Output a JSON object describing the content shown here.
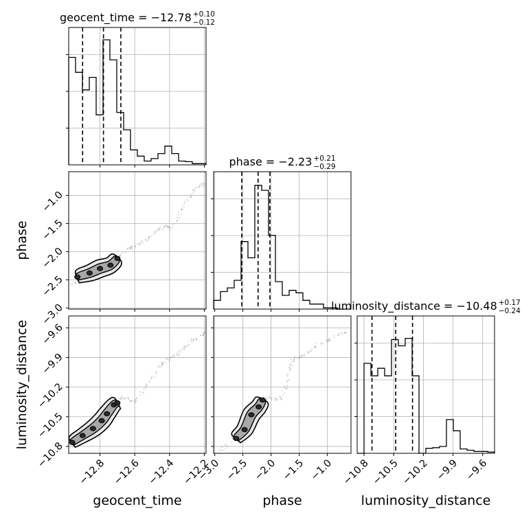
{
  "chart_data": {
    "type": "corner",
    "parameters": [
      "geocent_time",
      "phase",
      "luminosity_distance"
    ],
    "axis_labels": {
      "geocent_time": "geocent_time",
      "phase": "phase",
      "luminosity_distance": "luminosity_distance"
    },
    "ranges": {
      "geocent_time": [
        -12.98,
        -12.19
      ],
      "phase": [
        -3.02,
        -0.58
      ],
      "luminosity_distance": [
        -10.87,
        -9.48
      ]
    },
    "ticks": {
      "geocent_time": [
        {
          "value": -12.8,
          "label": "−12.8"
        },
        {
          "value": -12.6,
          "label": "−12.6"
        },
        {
          "value": -12.4,
          "label": "−12.4"
        },
        {
          "value": -12.2,
          "label": "−12.2"
        }
      ],
      "phase": [
        {
          "value": -3.0,
          "label": "−3.0"
        },
        {
          "value": -2.5,
          "label": "−2.5"
        },
        {
          "value": -2.0,
          "label": "−2.0"
        },
        {
          "value": -1.5,
          "label": "−1.5"
        },
        {
          "value": -1.0,
          "label": "−1.0"
        }
      ],
      "luminosity_distance": [
        {
          "value": -10.8,
          "label": "−10.8"
        },
        {
          "value": -10.5,
          "label": "−10.5"
        },
        {
          "value": -10.2,
          "label": "−10.2"
        },
        {
          "value": -9.9,
          "label": "−9.9"
        },
        {
          "value": -9.6,
          "label": "−9.6"
        }
      ]
    },
    "titles": [
      {
        "param": "geocent_time",
        "text": "geocent_time = −12.78",
        "plus": "+0.10",
        "minus": "−0.12"
      },
      {
        "param": "phase",
        "text": "phase = −2.23",
        "plus": "+0.21",
        "minus": "−0.29"
      },
      {
        "param": "luminosity_distance",
        "text": "luminosity_distance = −10.48",
        "plus": "+0.17",
        "minus": "−0.24"
      }
    ],
    "quantiles": {
      "geocent_time": [
        -12.9,
        -12.78,
        -12.68
      ],
      "phase": [
        -2.52,
        -2.23,
        -2.02
      ],
      "luminosity_distance": [
        -10.72,
        -10.48,
        -10.31
      ]
    },
    "histograms": {
      "geocent_time": [
        0.86,
        0.74,
        0.6,
        0.7,
        0.4,
        1.0,
        0.84,
        0.42,
        0.28,
        0.12,
        0.07,
        0.03,
        0.05,
        0.09,
        0.15,
        0.09,
        0.03,
        0.025,
        0.01,
        0.01
      ],
      "phase": [
        0.07,
        0.14,
        0.17,
        0.23,
        0.54,
        0.41,
        0.99,
        0.95,
        0.59,
        0.22,
        0.11,
        0.15,
        0.13,
        0.07,
        0.04,
        0.04,
        0.01,
        0.01,
        0.0,
        0.0
      ],
      "luminosity_distance": [
        0.0,
        0.72,
        0.62,
        0.68,
        0.62,
        0.91,
        0.86,
        0.92,
        0.62,
        0.0,
        0.04,
        0.045,
        0.055,
        0.27,
        0.18,
        0.035,
        0.025,
        0.015,
        0.015,
        0.01
      ]
    },
    "scatter": {
      "time_phase": [
        [
          -12.97,
          -2.6
        ],
        [
          -12.93,
          -2.55
        ],
        [
          -12.89,
          -2.46
        ],
        [
          -12.85,
          -2.38
        ],
        [
          -12.81,
          -2.3
        ],
        [
          -12.77,
          -2.24
        ],
        [
          -12.73,
          -2.17
        ],
        [
          -12.69,
          -2.08
        ],
        [
          -12.65,
          -2.0
        ],
        [
          -12.62,
          -1.94
        ],
        [
          -12.59,
          -1.88
        ],
        [
          -12.56,
          -1.85
        ],
        [
          -12.53,
          -1.78
        ],
        [
          -12.5,
          -1.68
        ],
        [
          -12.47,
          -1.6
        ],
        [
          -12.44,
          -1.57
        ],
        [
          -12.41,
          -1.55
        ],
        [
          -12.39,
          -1.59
        ],
        [
          -12.36,
          -1.44
        ],
        [
          -12.33,
          -1.26
        ],
        [
          -12.3,
          -1.1
        ],
        [
          -12.27,
          -0.97
        ],
        [
          -12.25,
          -0.89
        ],
        [
          -12.22,
          -0.82
        ],
        [
          -12.2,
          -0.8
        ]
      ],
      "time_distance": [
        [
          -12.97,
          -10.78
        ],
        [
          -12.93,
          -10.72
        ],
        [
          -12.89,
          -10.66
        ],
        [
          -12.85,
          -10.58
        ],
        [
          -12.81,
          -10.5
        ],
        [
          -12.77,
          -10.43
        ],
        [
          -12.73,
          -10.36
        ],
        [
          -12.69,
          -10.31
        ],
        [
          -12.66,
          -10.31
        ],
        [
          -12.63,
          -10.33
        ],
        [
          -12.6,
          -10.34
        ],
        [
          -12.57,
          -10.29
        ],
        [
          -12.54,
          -10.21
        ],
        [
          -12.51,
          -10.13
        ],
        [
          -12.48,
          -10.05
        ],
        [
          -12.45,
          -9.98
        ],
        [
          -12.42,
          -9.93
        ],
        [
          -12.39,
          -9.91
        ],
        [
          -12.36,
          -9.88
        ],
        [
          -12.33,
          -9.82
        ],
        [
          -12.3,
          -9.77
        ],
        [
          -12.27,
          -9.73
        ],
        [
          -12.24,
          -9.7
        ],
        [
          -12.21,
          -9.66
        ],
        [
          -12.19,
          -9.64
        ]
      ],
      "phase_distance": [
        [
          -2.95,
          -10.86
        ],
        [
          -2.8,
          -10.8
        ],
        [
          -2.68,
          -10.7
        ],
        [
          -2.55,
          -10.6
        ],
        [
          -2.45,
          -10.52
        ],
        [
          -2.35,
          -10.44
        ],
        [
          -2.27,
          -10.37
        ],
        [
          -2.18,
          -10.33
        ],
        [
          -2.08,
          -10.31
        ],
        [
          -1.98,
          -10.32
        ],
        [
          -1.88,
          -10.33
        ],
        [
          -1.8,
          -10.3
        ],
        [
          -1.74,
          -10.2
        ],
        [
          -1.7,
          -10.1
        ],
        [
          -1.66,
          -10.0
        ],
        [
          -1.63,
          -9.94
        ],
        [
          -1.56,
          -9.91
        ],
        [
          -1.46,
          -9.89
        ],
        [
          -1.35,
          -9.85
        ],
        [
          -1.24,
          -9.8
        ],
        [
          -1.12,
          -9.76
        ],
        [
          -1.0,
          -9.73
        ],
        [
          -0.88,
          -9.69
        ],
        [
          -0.75,
          -9.66
        ],
        [
          -0.62,
          -9.63
        ]
      ]
    },
    "blobs": {
      "time_phase": [
        [
          -12.93,
          -2.45
        ],
        [
          -12.86,
          -2.38
        ],
        [
          -12.8,
          -2.3
        ],
        [
          -12.74,
          -2.24
        ],
        [
          -12.7,
          -2.12
        ]
      ],
      "time_distance": [
        [
          -12.96,
          -10.76
        ],
        [
          -12.9,
          -10.69
        ],
        [
          -12.84,
          -10.62
        ],
        [
          -12.79,
          -10.54
        ],
        [
          -12.76,
          -10.47
        ],
        [
          -12.72,
          -10.38
        ],
        [
          -12.7,
          -10.36
        ]
      ],
      "phase_distance": [
        [
          -2.62,
          -10.72
        ],
        [
          -2.47,
          -10.63
        ],
        [
          -2.35,
          -10.48
        ],
        [
          -2.22,
          -10.4
        ],
        [
          -2.15,
          -10.33
        ]
      ]
    }
  }
}
